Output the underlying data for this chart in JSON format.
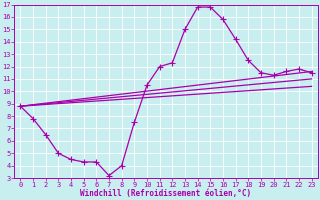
{
  "bg_color": "#c8eef0",
  "grid_color": "#ffffff",
  "line_color": "#aa00aa",
  "xlabel": "Windchill (Refroidissement éolien,°C)",
  "xlim": [
    -0.5,
    23.5
  ],
  "ylim": [
    3,
    17
  ],
  "xticks": [
    0,
    1,
    2,
    3,
    4,
    5,
    6,
    7,
    8,
    9,
    10,
    11,
    12,
    13,
    14,
    15,
    16,
    17,
    18,
    19,
    20,
    21,
    22,
    23
  ],
  "yticks": [
    3,
    4,
    5,
    6,
    7,
    8,
    9,
    10,
    11,
    12,
    13,
    14,
    15,
    16,
    17
  ],
  "curve1_x": [
    0,
    1,
    2,
    3,
    4,
    5,
    6,
    7,
    8,
    9,
    10,
    11,
    12,
    13,
    14,
    15,
    16,
    17,
    18,
    19,
    20,
    21,
    22,
    23
  ],
  "curve1_y": [
    8.8,
    7.8,
    6.5,
    5.0,
    4.5,
    4.3,
    4.3,
    3.2,
    4.0,
    7.5,
    10.5,
    12.0,
    12.3,
    15.0,
    16.8,
    16.8,
    15.8,
    14.2,
    12.5,
    11.5,
    11.3,
    11.6,
    11.8,
    11.5
  ],
  "curve2_x": [
    0,
    23
  ],
  "curve2_y": [
    8.8,
    11.0
  ],
  "curve3_x": [
    0,
    23
  ],
  "curve3_y": [
    8.8,
    10.4
  ],
  "curve4_x": [
    0,
    23
  ],
  "curve4_y": [
    8.8,
    11.6
  ],
  "marker": "+",
  "markersize": 4,
  "linewidth": 0.9,
  "tick_fontsize": 5.0,
  "xlabel_fontsize": 5.5
}
